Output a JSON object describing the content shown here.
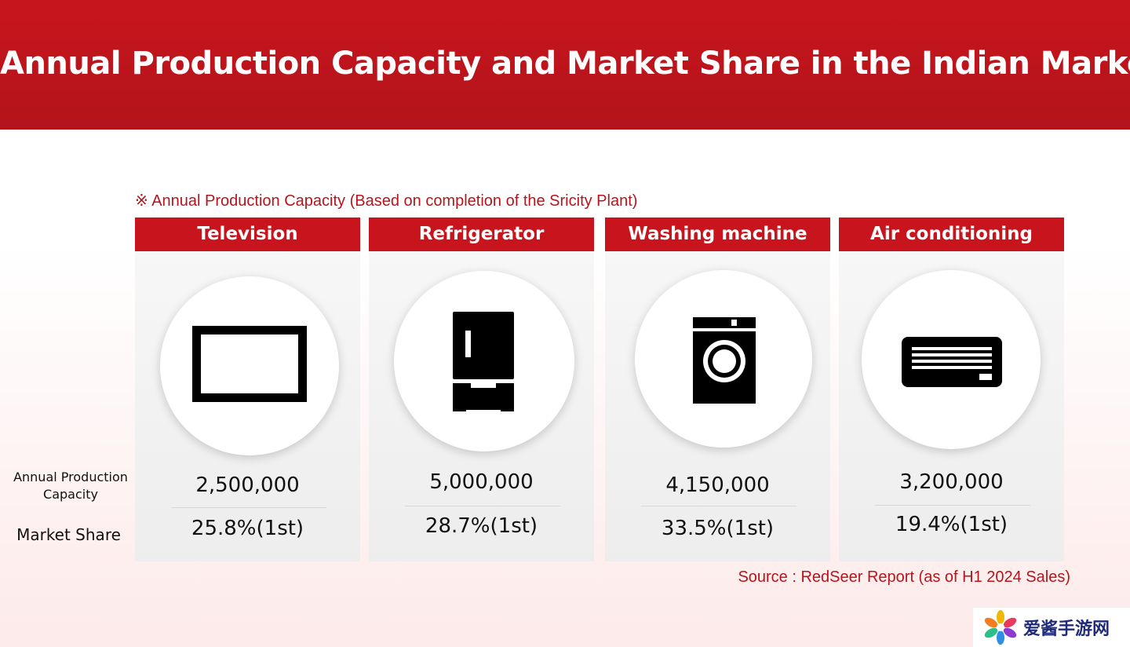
{
  "header": {
    "title": "Annual Production Capacity and Market Share in the Indian Market"
  },
  "note": "※ Annual Production Capacity (Based on completion of the Sricity Plant)",
  "row_labels": {
    "capacity_line1": "Annual Production",
    "capacity_line2": "Capacity",
    "share": "Market Share"
  },
  "products": [
    {
      "name": "Television",
      "icon": "tv-icon",
      "capacity": "2,500,000",
      "share": "25.8%(1st)"
    },
    {
      "name": "Refrigerator",
      "icon": "refrigerator-icon",
      "capacity": "5,000,000",
      "share": "28.7%(1st)"
    },
    {
      "name": "Washing machine",
      "icon": "washing-machine-icon",
      "capacity": "4,150,000",
      "share": "33.5%(1st)"
    },
    {
      "name": "Air conditioning",
      "icon": "air-conditioner-icon",
      "capacity": "3,200,000",
      "share": "19.4%(1st)"
    }
  ],
  "source": "Source : RedSeer Report (as of H1 2024 Sales)",
  "watermark": {
    "text": "爱酱手游网",
    "icon": "flower-logo-icon"
  },
  "colors": {
    "brand_red": "#c8151d",
    "note_red": "#b5151c"
  }
}
